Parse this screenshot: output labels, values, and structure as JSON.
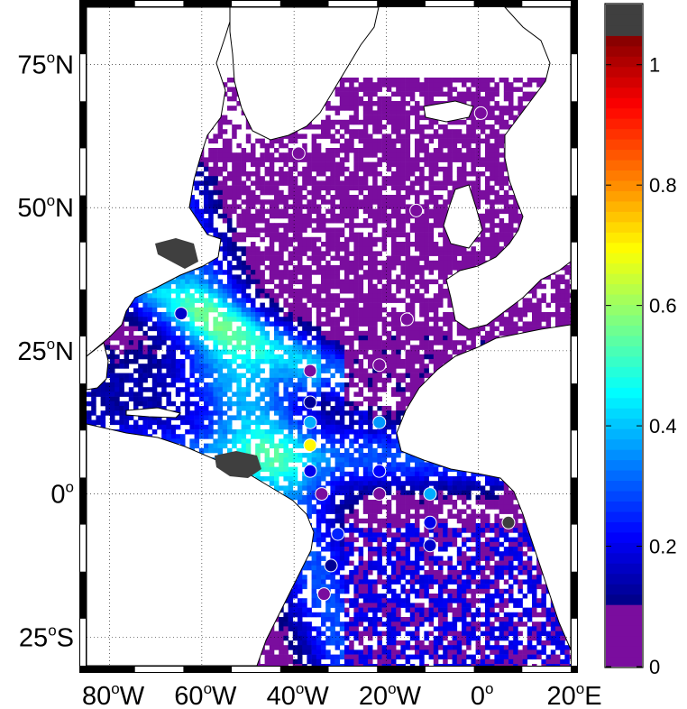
{
  "map": {
    "lon_range": [
      -85,
      20
    ],
    "lat_range": [
      -30,
      85
    ],
    "lat_labels": [
      {
        "deg": "75",
        "sup": "o",
        "hem": "N",
        "value": 75
      },
      {
        "deg": "50",
        "sup": "o",
        "hem": "N",
        "value": 50
      },
      {
        "deg": "25",
        "sup": "o",
        "hem": "N",
        "value": 25
      },
      {
        "deg": "0",
        "sup": "o",
        "hem": "",
        "value": 0
      },
      {
        "deg": "25",
        "sup": "o",
        "hem": "S",
        "value": -25
      }
    ],
    "lon_labels": [
      {
        "deg": "80",
        "sup": "o",
        "hem": "W",
        "value": -80
      },
      {
        "deg": "60",
        "sup": "o",
        "hem": "W",
        "value": -60
      },
      {
        "deg": "40",
        "sup": "o",
        "hem": "W",
        "value": -40
      },
      {
        "deg": "20",
        "sup": "o",
        "hem": "W",
        "value": -20
      },
      {
        "deg": "0",
        "sup": "o",
        "hem": "",
        "value": 0
      },
      {
        "deg": "20",
        "sup": "o",
        "hem": "E",
        "value": 20
      }
    ],
    "grid": true,
    "stations": [
      {
        "lon": 0.5,
        "lat": 66.5,
        "value": 0.02
      },
      {
        "lon": -39.0,
        "lat": 59.5,
        "value": 0.02
      },
      {
        "lon": -13.5,
        "lat": 49.5,
        "value": 0.02
      },
      {
        "lon": -64.5,
        "lat": 31.5,
        "value": 0.17
      },
      {
        "lon": -15.5,
        "lat": 30.5,
        "value": 0.02
      },
      {
        "lon": -36.5,
        "lat": 21.5,
        "value": 0.02
      },
      {
        "lon": -21.5,
        "lat": 22.5,
        "value": 0.02
      },
      {
        "lon": -36.5,
        "lat": 16.0,
        "value": 0.12
      },
      {
        "lon": -36.5,
        "lat": 12.5,
        "value": 0.38
      },
      {
        "lon": -21.5,
        "lat": 12.5,
        "value": 0.36
      },
      {
        "lon": -36.5,
        "lat": 8.5,
        "value": 0.7
      },
      {
        "lon": -36.5,
        "lat": 4.0,
        "value": 0.2
      },
      {
        "lon": -21.5,
        "lat": 4.0,
        "value": 0.22
      },
      {
        "lon": -34.0,
        "lat": 0.0,
        "value": 0.02
      },
      {
        "lon": -21.5,
        "lat": 0.0,
        "value": 0.02
      },
      {
        "lon": -10.5,
        "lat": 0.0,
        "value": 0.38
      },
      {
        "lon": -10.5,
        "lat": -5.0,
        "value": 0.2
      },
      {
        "lon": -30.5,
        "lat": -7.0,
        "value": 0.25
      },
      {
        "lon": -10.5,
        "lat": -9.0,
        "value": 0.17
      },
      {
        "lon": -32.0,
        "lat": -12.5,
        "value": 0.12
      },
      {
        "lon": -33.5,
        "lat": -17.5,
        "value": 0.02
      },
      {
        "lon": 6.5,
        "lat": -5.0,
        "value": 1.2
      }
    ]
  },
  "colorbar": {
    "range": [
      0,
      1.1
    ],
    "ticks": [
      {
        "value": 0,
        "label": "0"
      },
      {
        "value": 0.2,
        "label": "0.2"
      },
      {
        "value": 0.4,
        "label": "0.4"
      },
      {
        "value": 0.6,
        "label": "0.6"
      },
      {
        "value": 0.8,
        "label": "0.8"
      },
      {
        "value": 1,
        "label": "1"
      }
    ],
    "low_color": "#7a0d9e",
    "high_color": "#3f3f3f",
    "land_color": "#ffffff"
  }
}
